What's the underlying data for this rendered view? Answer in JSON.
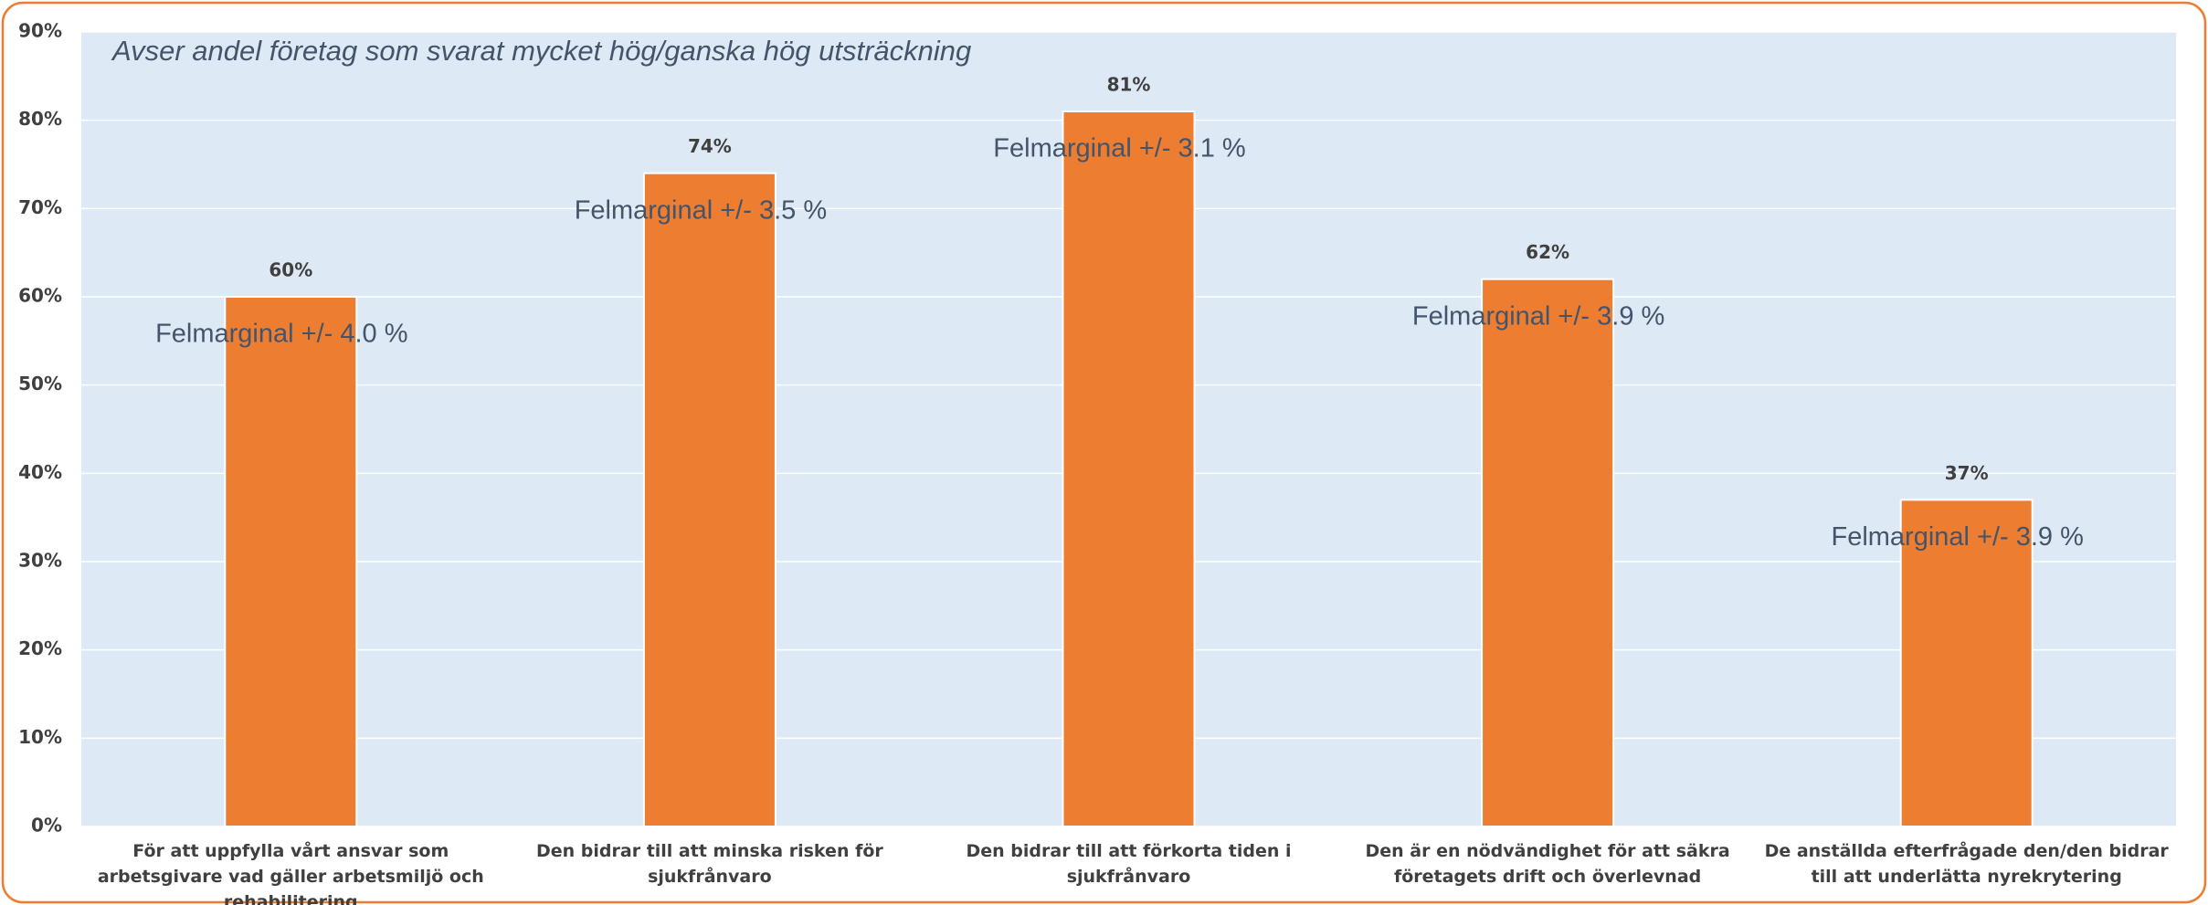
{
  "chart_data": {
    "type": "bar",
    "subtitle": "Avser andel företag som svarat mycket hög/ganska hög utsträckning",
    "categories": [
      "För att uppfylla vårt ansvar som arbetsgivare vad gäller arbetsmiljö och rehabilitering",
      "Den bidrar till att minska risken för sjukfrånvaro",
      "Den bidrar till att förkorta tiden i sjukfrånvaro",
      "Den är en nödvändighet för att säkra företagets drift och överlevnad",
      "De anställda efterfrågade den/den bidrar till att underlätta nyrekrytering"
    ],
    "values": [
      60,
      74,
      81,
      62,
      37
    ],
    "value_labels": [
      "60%",
      "74%",
      "81%",
      "62%",
      "37%"
    ],
    "annotations": [
      "Felmarginal +/- 4.0 %",
      "Felmarginal +/- 3.5 %",
      "Felmarginal +/- 3.1 %",
      "Felmarginal +/- 3.9 %",
      "Felmarginal +/- 3.9 %"
    ],
    "color": "#ed7d31",
    "ylim": [
      0,
      90
    ],
    "yticks": [
      {
        "value": 0,
        "label": "0%"
      },
      {
        "value": 10,
        "label": "10%"
      },
      {
        "value": 20,
        "label": "20%"
      },
      {
        "value": 30,
        "label": "30%"
      },
      {
        "value": 40,
        "label": "40%"
      },
      {
        "value": 50,
        "label": "50%"
      },
      {
        "value": 60,
        "label": "60%"
      },
      {
        "value": 70,
        "label": "70%"
      },
      {
        "value": 80,
        "label": "80%"
      },
      {
        "value": 90,
        "label": "90%"
      }
    ],
    "grid": true
  }
}
